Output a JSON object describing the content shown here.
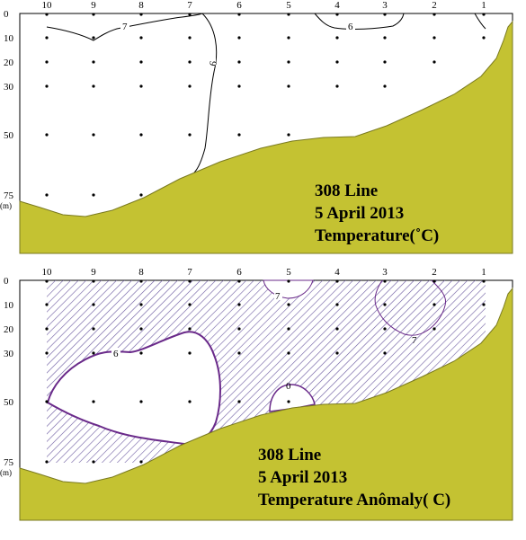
{
  "colors": {
    "bathymetry_fill": "#c4c232",
    "bathymetry_stroke": "#7a7a20",
    "hatch": "#6b5aa0",
    "anomaly_contour": "#6a2a8a",
    "temperature_contour": "#000000"
  },
  "station_labels": [
    "10",
    "9",
    "8",
    "7",
    "6",
    "5",
    "4",
    "3",
    "2",
    "1"
  ],
  "depth_labels": [
    "0",
    "10",
    "20",
    "30",
    "50",
    "75"
  ],
  "depth_unit": "(m)",
  "depth_values": [
    0,
    10,
    20,
    30,
    50,
    75
  ],
  "top_panel": {
    "title_line1": "308 Line",
    "title_line2": "5 April 2013",
    "title_line3": "Temperature(˚C)",
    "contour_labels": [
      "7",
      "6",
      "6"
    ]
  },
  "bottom_panel": {
    "title_line1": "308 Line",
    "title_line2": "5 April 2013",
    "title_line3": "Temperature Anômaly(  C)",
    "contour_labels": [
      "7",
      "7",
      "6",
      "0"
    ]
  }
}
